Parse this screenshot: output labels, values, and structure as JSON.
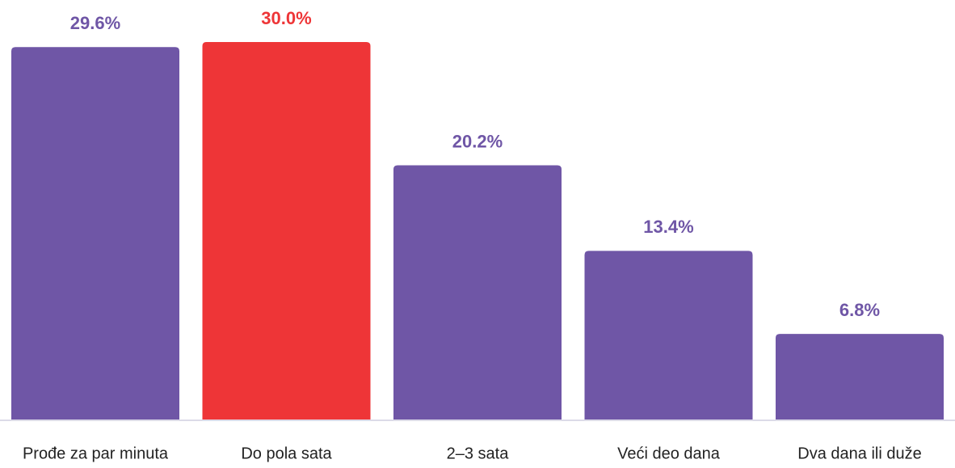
{
  "chart_data": {
    "type": "bar",
    "categories": [
      "Prođe za par minuta",
      "Do pola sata",
      "2–3 sata",
      "Veći deo dana",
      "Dva dana ili duže"
    ],
    "values": [
      29.6,
      30.0,
      20.2,
      13.4,
      6.8
    ],
    "value_labels": [
      "29.6%",
      "30.0%",
      "20.2%",
      "13.4%",
      "6.8%"
    ],
    "colors": [
      "#6f56a6",
      "#ee3537",
      "#6f56a6",
      "#6f56a6",
      "#6f56a6"
    ]
  }
}
